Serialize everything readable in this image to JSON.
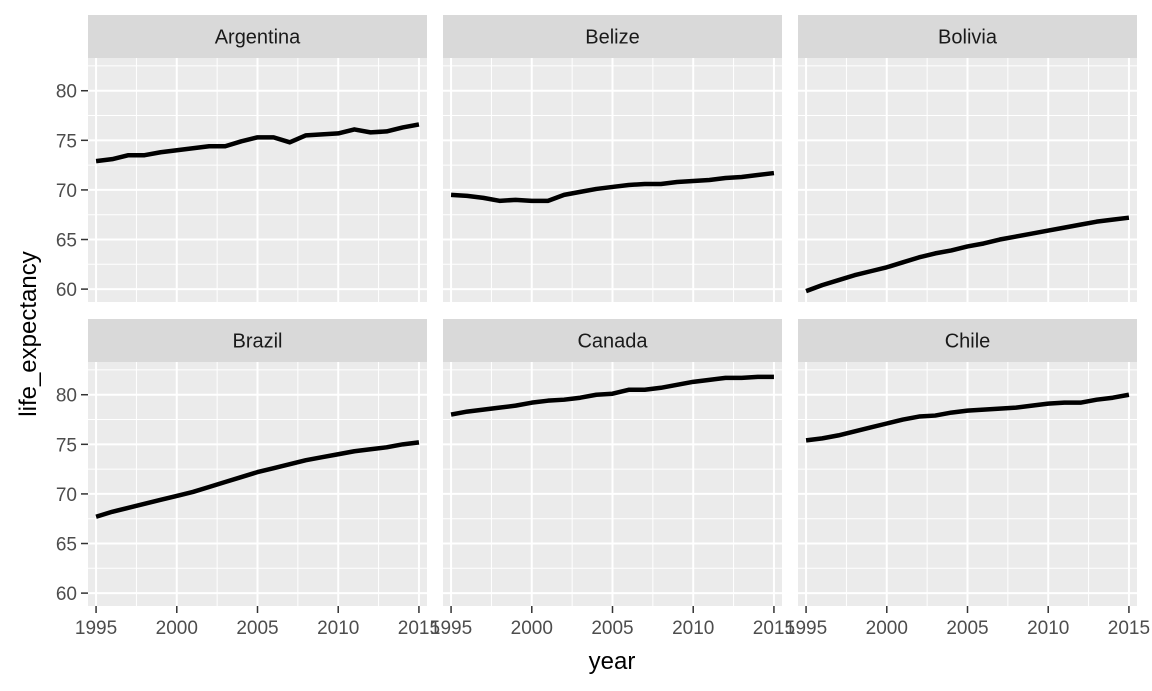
{
  "chart_data": {
    "type": "line",
    "layout": "facet_wrap",
    "ncol": 3,
    "xlabel": "year",
    "ylabel": "life_expectancy",
    "xlim": [
      1994.5,
      2015.5
    ],
    "ylim": [
      58.7,
      83.3
    ],
    "x_ticks": [
      1995,
      2000,
      2005,
      2010,
      2015
    ],
    "y_ticks": [
      60,
      65,
      70,
      75,
      80
    ],
    "x_tick_labels": [
      "1995",
      "2000",
      "2005",
      "2010",
      "2015"
    ],
    "y_tick_labels": [
      "60",
      "65",
      "70",
      "75",
      "80"
    ],
    "grid": true,
    "x": [
      1995,
      1996,
      1997,
      1998,
      1999,
      2000,
      2001,
      2002,
      2003,
      2004,
      2005,
      2006,
      2007,
      2008,
      2009,
      2010,
      2011,
      2012,
      2013,
      2014,
      2015
    ],
    "series": [
      {
        "name": "Argentina",
        "values": [
          72.9,
          73.1,
          73.5,
          73.5,
          73.8,
          74.0,
          74.2,
          74.4,
          74.4,
          74.9,
          75.3,
          75.3,
          74.8,
          75.5,
          75.6,
          75.7,
          76.1,
          75.8,
          75.9,
          76.3,
          76.6
        ]
      },
      {
        "name": "Belize",
        "values": [
          69.5,
          69.4,
          69.2,
          68.9,
          69.0,
          68.9,
          68.9,
          69.5,
          69.8,
          70.1,
          70.3,
          70.5,
          70.6,
          70.6,
          70.8,
          70.9,
          71.0,
          71.2,
          71.3,
          71.5,
          71.7
        ]
      },
      {
        "name": "Bolivia",
        "values": [
          59.8,
          60.4,
          60.9,
          61.4,
          61.8,
          62.2,
          62.7,
          63.2,
          63.6,
          63.9,
          64.3,
          64.6,
          65.0,
          65.3,
          65.6,
          65.9,
          66.2,
          66.5,
          66.8,
          67.0,
          67.2
        ]
      },
      {
        "name": "Brazil",
        "values": [
          67.7,
          68.2,
          68.6,
          69.0,
          69.4,
          69.8,
          70.2,
          70.7,
          71.2,
          71.7,
          72.2,
          72.6,
          73.0,
          73.4,
          73.7,
          74.0,
          74.3,
          74.5,
          74.7,
          75.0,
          75.2
        ]
      },
      {
        "name": "Canada",
        "values": [
          78.0,
          78.3,
          78.5,
          78.7,
          78.9,
          79.2,
          79.4,
          79.5,
          79.7,
          80.0,
          80.1,
          80.5,
          80.5,
          80.7,
          81.0,
          81.3,
          81.5,
          81.7,
          81.7,
          81.8,
          81.8
        ]
      },
      {
        "name": "Chile",
        "values": [
          75.4,
          75.6,
          75.9,
          76.3,
          76.7,
          77.1,
          77.5,
          77.8,
          77.9,
          78.2,
          78.4,
          78.5,
          78.6,
          78.7,
          78.9,
          79.1,
          79.2,
          79.2,
          79.5,
          79.7,
          80.0
        ]
      }
    ]
  }
}
